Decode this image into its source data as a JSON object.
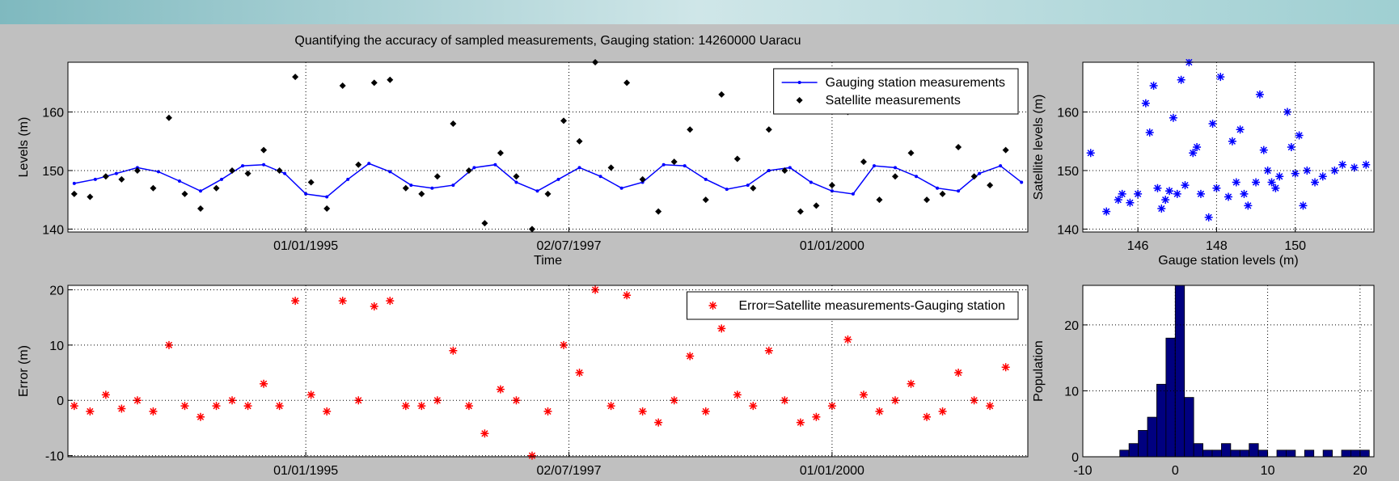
{
  "chart_data": [
    {
      "type": "line",
      "title": "Quantifying the accuracy of sampled measurements, Gauging station: 14260000 Uaracu",
      "xlabel": "Time",
      "ylabel": "Levels (m)",
      "xlim": [
        1992.74,
        2001.86
      ],
      "ylim": [
        139.5,
        168.5
      ],
      "xticks": [
        {
          "value": 1995.0,
          "label": "01/01/1995"
        },
        {
          "value": 1997.5,
          "label": "02/07/1997"
        },
        {
          "value": 2000.0,
          "label": "01/01/2000"
        }
      ],
      "yticks": [
        140,
        150,
        160
      ],
      "grid": true,
      "legend": "upper right",
      "series": [
        {
          "name": "Gauging station measurements",
          "color": "#0000ff",
          "line": true,
          "marker": "dot",
          "x": [
            1992.8,
            1993.0,
            1993.2,
            1993.4,
            1993.6,
            1993.8,
            1994.0,
            1994.2,
            1994.4,
            1994.6,
            1994.8,
            1995.0,
            1995.2,
            1995.4,
            1995.6,
            1995.8,
            1996.0,
            1996.2,
            1996.4,
            1996.6,
            1996.8,
            1997.0,
            1997.2,
            1997.4,
            1997.6,
            1997.8,
            1998.0,
            1998.2,
            1998.4,
            1998.6,
            1998.8,
            1999.0,
            1999.2,
            1999.4,
            1999.6,
            1999.8,
            2000.0,
            2000.2,
            2000.4,
            2000.6,
            2000.8,
            2001.0,
            2001.2,
            2001.4,
            2001.6,
            2001.8
          ],
          "values": [
            147.8,
            148.5,
            149.5,
            150.5,
            149.8,
            148.2,
            146.5,
            148.5,
            150.8,
            151.0,
            149.5,
            146.0,
            145.5,
            148.5,
            151.2,
            149.8,
            147.5,
            147.0,
            147.5,
            150.5,
            151.0,
            148.0,
            146.5,
            148.5,
            150.5,
            149.0,
            147.0,
            148.0,
            151.0,
            150.8,
            148.5,
            146.8,
            147.5,
            150.0,
            150.5,
            148.0,
            146.5,
            146.0,
            150.8,
            150.5,
            149.0,
            147.0,
            146.5,
            149.5,
            150.8,
            148.0
          ]
        },
        {
          "name": "Satellite measurements",
          "color": "#000000",
          "line": false,
          "marker": "diamond",
          "x": [
            1992.8,
            1992.95,
            1993.1,
            1993.25,
            1993.4,
            1993.55,
            1993.7,
            1993.85,
            1994.0,
            1994.15,
            1994.3,
            1994.45,
            1994.6,
            1994.75,
            1994.9,
            1995.05,
            1995.2,
            1995.35,
            1995.5,
            1995.65,
            1995.8,
            1995.95,
            1996.1,
            1996.25,
            1996.4,
            1996.55,
            1996.7,
            1996.85,
            1997.0,
            1997.15,
            1997.3,
            1997.45,
            1997.6,
            1997.75,
            1997.9,
            1998.05,
            1998.2,
            1998.35,
            1998.5,
            1998.65,
            1998.8,
            1998.95,
            1999.1,
            1999.25,
            1999.4,
            1999.55,
            1999.7,
            1999.85,
            2000.0,
            2000.15,
            2000.3,
            2000.45,
            2000.6,
            2000.75,
            2000.9,
            2001.05,
            2001.2,
            2001.35,
            2001.5,
            2001.65
          ],
          "values": [
            146,
            145.5,
            149,
            148.5,
            150,
            147,
            159,
            146,
            143.5,
            147,
            150,
            149.5,
            153.5,
            150,
            166,
            148,
            143.5,
            164.5,
            151,
            165,
            165.5,
            147,
            146,
            149,
            158,
            150,
            141,
            153,
            149,
            140,
            146,
            158.5,
            155,
            168.5,
            150.5,
            165,
            148.5,
            143,
            151.5,
            157,
            145,
            163,
            152,
            147,
            157,
            150,
            143,
            144,
            147.5,
            160,
            151.5,
            145,
            149,
            153,
            145,
            146,
            154,
            149,
            147.5,
            153.5
          ]
        }
      ]
    },
    {
      "type": "scatter",
      "ylabel": "Error (m)",
      "xlim": [
        1992.74,
        2001.86
      ],
      "ylim": [
        -10.2,
        20.8
      ],
      "xticks": [
        {
          "value": 1995.0,
          "label": "01/01/1995"
        },
        {
          "value": 1997.5,
          "label": "02/07/1997"
        },
        {
          "value": 2000.0,
          "label": "01/01/2000"
        }
      ],
      "yticks": [
        -10,
        0,
        10,
        20
      ],
      "grid": true,
      "legend": "upper right",
      "series": [
        {
          "name": "Error=Satellite measurements-Gauging station",
          "color": "#ff0000",
          "line": false,
          "marker": "asterisk",
          "x": [
            1992.8,
            1992.95,
            1993.1,
            1993.25,
            1993.4,
            1993.55,
            1993.7,
            1993.85,
            1994.0,
            1994.15,
            1994.3,
            1994.45,
            1994.6,
            1994.75,
            1994.9,
            1995.05,
            1995.2,
            1995.35,
            1995.5,
            1995.65,
            1995.8,
            1995.95,
            1996.1,
            1996.25,
            1996.4,
            1996.55,
            1996.7,
            1996.85,
            1997.0,
            1997.15,
            1997.3,
            1997.45,
            1997.6,
            1997.75,
            1997.9,
            1998.05,
            1998.2,
            1998.35,
            1998.5,
            1998.65,
            1998.8,
            1998.95,
            1999.1,
            1999.25,
            1999.4,
            1999.55,
            1999.7,
            1999.85,
            2000.0,
            2000.15,
            2000.3,
            2000.45,
            2000.6,
            2000.75,
            2000.9,
            2001.05,
            2001.2,
            2001.35,
            2001.5,
            2001.65
          ],
          "values": [
            -1,
            -2,
            1,
            -1.5,
            0,
            -2,
            10,
            -1,
            -3,
            -1,
            0,
            -1,
            3,
            -1,
            18,
            1,
            -2,
            18,
            0,
            17,
            18,
            -1,
            -1,
            0,
            9,
            -1,
            -6,
            2,
            0,
            -10,
            -2,
            10,
            5,
            20,
            -1,
            19,
            -2,
            -4,
            0,
            8,
            -2,
            13,
            1,
            -1,
            9,
            0,
            -4,
            -3,
            -1,
            11,
            1,
            -2,
            0,
            3,
            -3,
            -2,
            5,
            0,
            -1,
            6
          ]
        }
      ]
    },
    {
      "type": "scatter",
      "xlabel": "Gauge station levels (m)",
      "ylabel": "Satellite levels (m)",
      "xlim": [
        144.6,
        152
      ],
      "ylim": [
        139.5,
        168.5
      ],
      "xticks": [
        146,
        148,
        150
      ],
      "yticks": [
        140,
        150,
        160
      ],
      "grid": true,
      "series": [
        {
          "color": "#0000ff",
          "line": false,
          "marker": "asterisk",
          "x": [
            144.8,
            145.2,
            145.5,
            145.8,
            146,
            146.2,
            146.4,
            146.5,
            146.7,
            146.9,
            147,
            147.2,
            147.3,
            147.5,
            147.6,
            147.8,
            148,
            148.1,
            148.3,
            148.5,
            148.6,
            148.8,
            149,
            149.1,
            149.3,
            149.5,
            149.6,
            149.8,
            150,
            150.1,
            150.3,
            150.5,
            150.7,
            151,
            151.2,
            151.5,
            151.8,
            146.3,
            146.6,
            147.1,
            147.4,
            147.9,
            148.4,
            148.7,
            149.2,
            149.4,
            149.9,
            150.2,
            145.6,
            146.8
          ],
          "values": [
            153,
            143,
            145,
            144.5,
            146,
            161.5,
            164.5,
            147,
            145,
            159,
            146,
            147.5,
            168.5,
            154,
            146,
            142,
            147,
            166,
            145.5,
            148,
            157,
            144,
            148,
            163,
            150,
            147,
            149,
            160,
            149.5,
            156,
            150,
            148,
            149,
            150,
            151,
            150.5,
            151,
            156.5,
            143.5,
            165.5,
            153,
            158,
            155,
            146,
            153.5,
            148,
            154,
            144,
            146,
            146.5
          ]
        }
      ]
    },
    {
      "type": "histogram",
      "ylabel": "Population",
      "xlim": [
        -10,
        21.5
      ],
      "ylim": [
        0,
        26
      ],
      "xticks": [
        -10,
        0,
        10,
        20
      ],
      "yticks": [
        0,
        10,
        20
      ],
      "grid": true,
      "color": "#000080",
      "bins": [
        -6,
        -5,
        -4,
        -3,
        -2,
        -1,
        0,
        1,
        2,
        3,
        4,
        5,
        6,
        7,
        8,
        9,
        10,
        11,
        12,
        13,
        14,
        15,
        16,
        17,
        18,
        19,
        20,
        21
      ],
      "values": [
        1,
        2,
        4,
        6,
        11,
        18,
        26,
        9,
        2,
        1,
        1,
        2,
        1,
        1,
        2,
        1,
        0,
        1,
        1,
        0,
        1,
        0,
        1,
        0,
        1,
        1,
        1
      ]
    }
  ]
}
